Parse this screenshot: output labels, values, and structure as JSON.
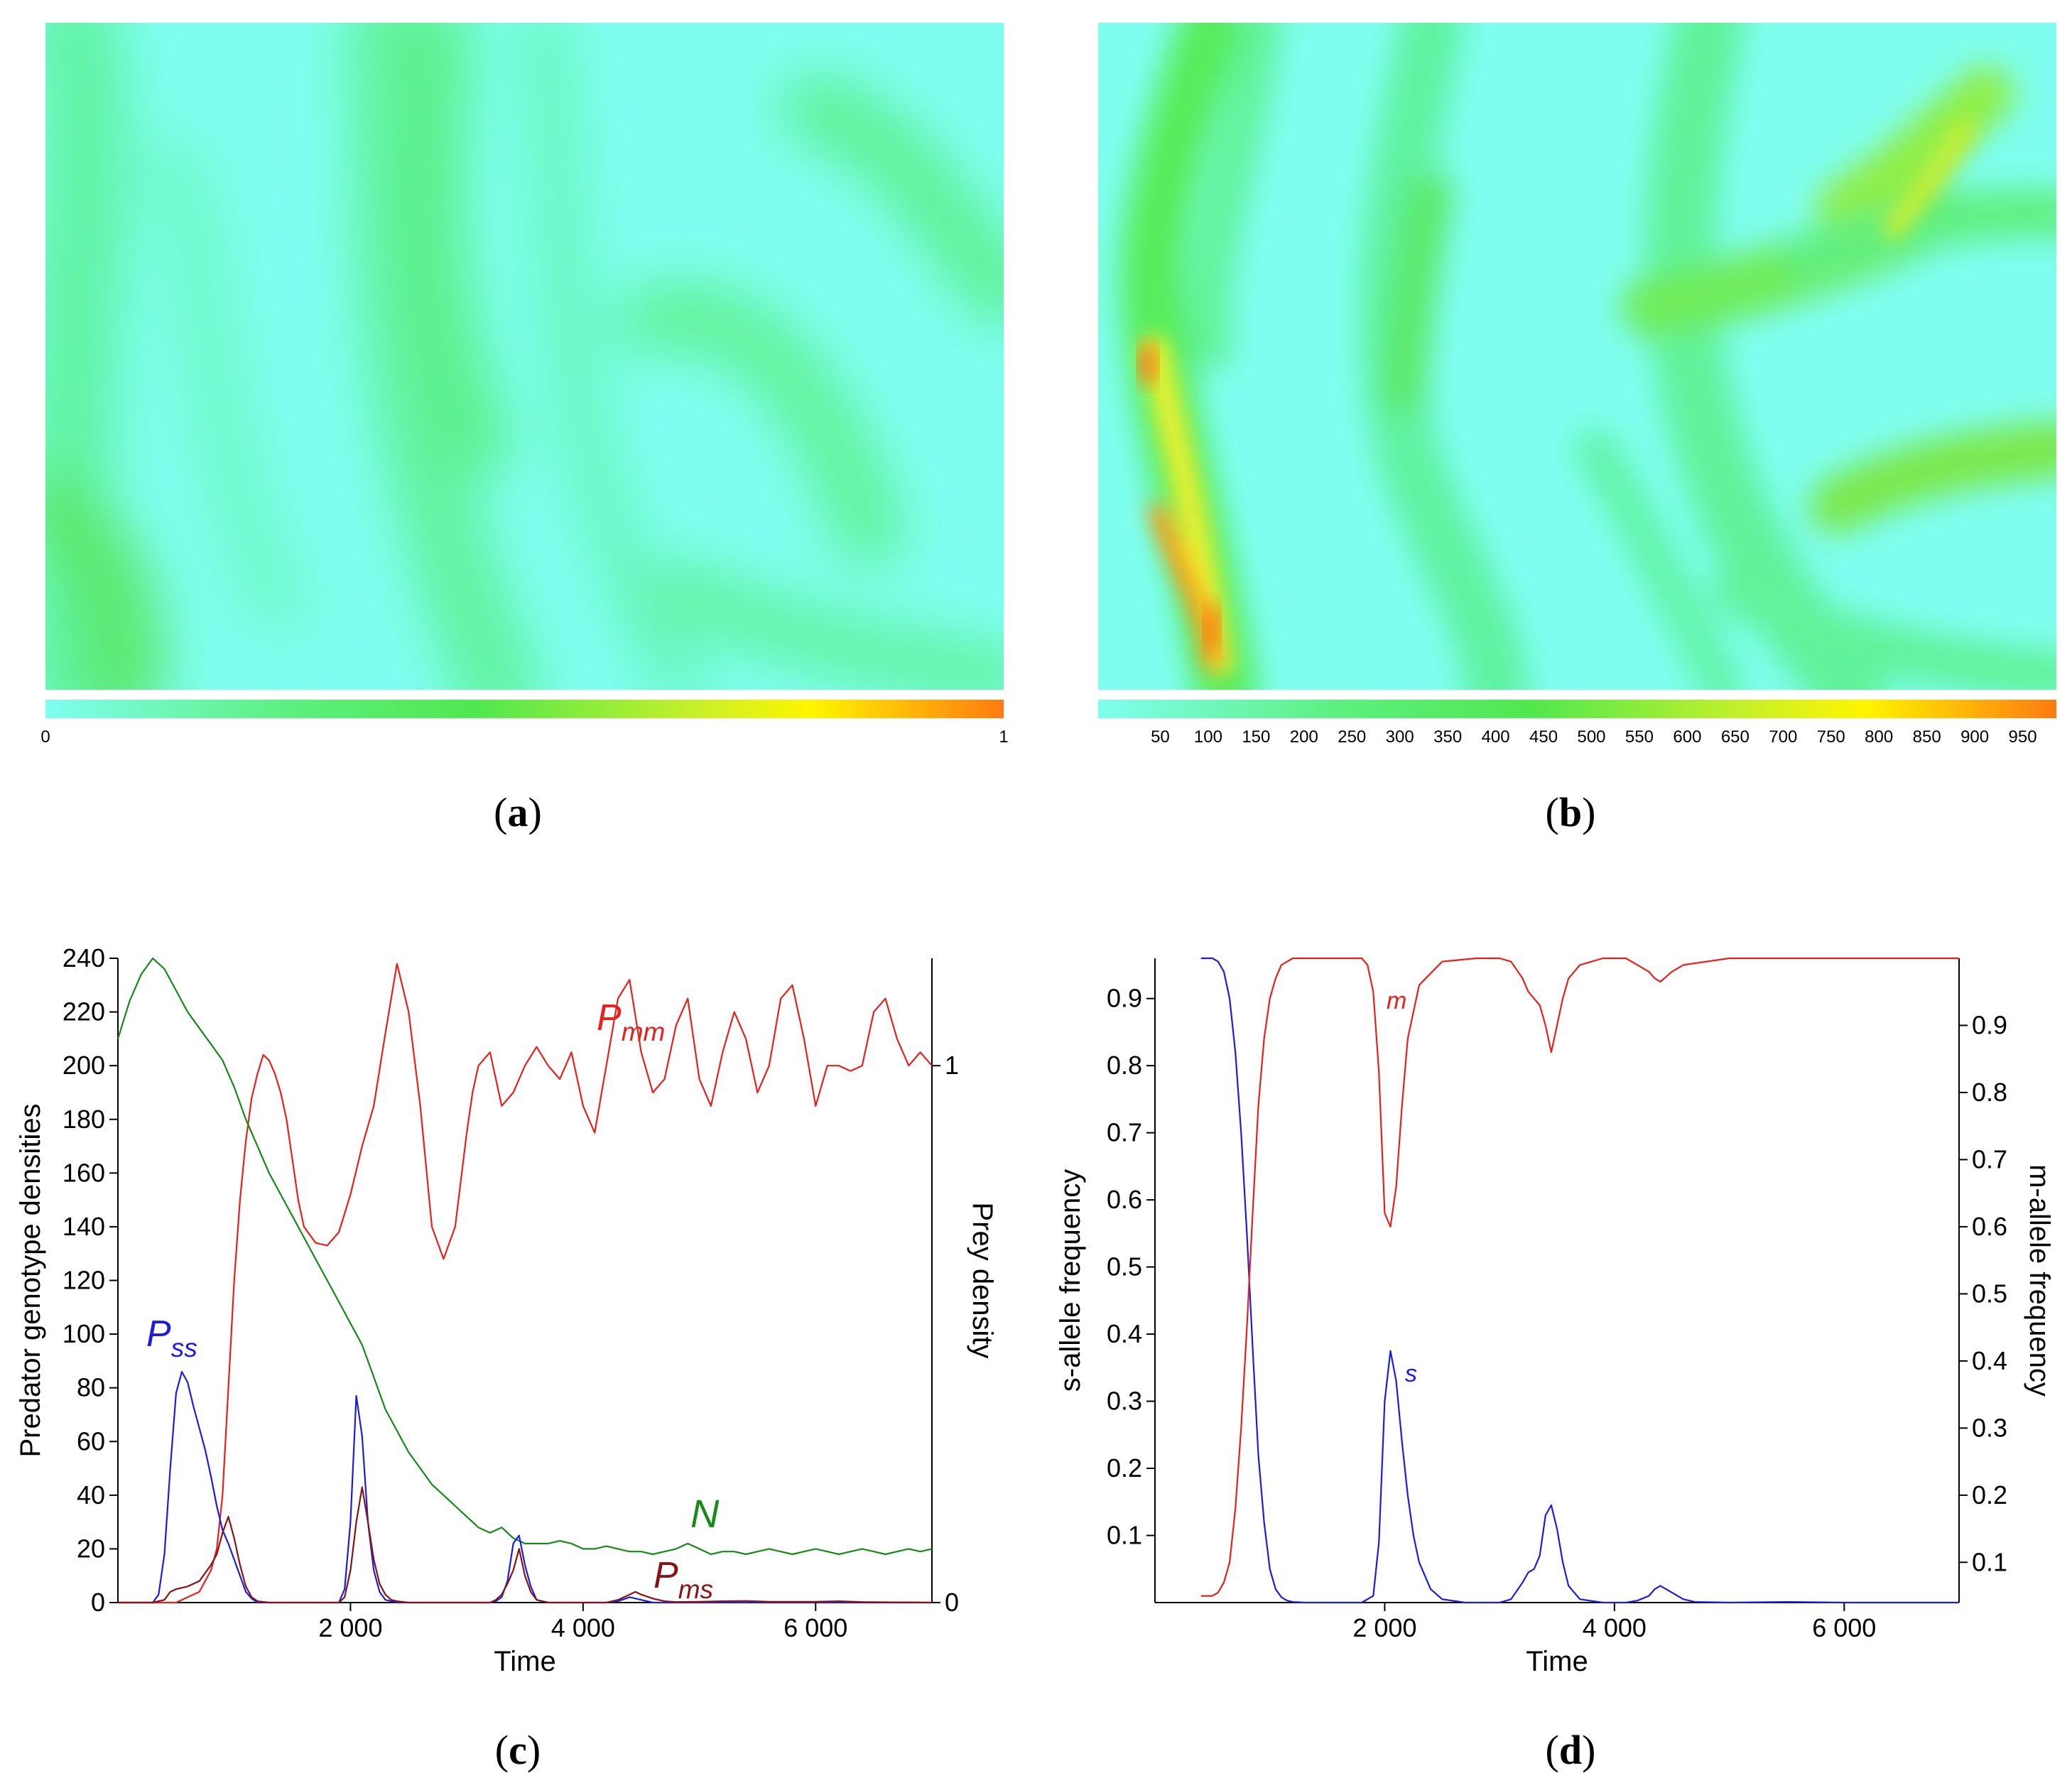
{
  "panels": {
    "a": {
      "label": "a"
    },
    "b": {
      "label": "b"
    },
    "c": {
      "label": "c"
    },
    "d": {
      "label": "d"
    }
  },
  "heatmap_a": {
    "colorbar_ticks": [
      "0",
      "1"
    ],
    "colors": [
      "#7ffef0",
      "#5cf080",
      "#4fe84f",
      "#c8f028",
      "#fff500",
      "#ff7a10"
    ]
  },
  "heatmap_b": {
    "colorbar_ticks": [
      "50",
      "100",
      "150",
      "200",
      "250",
      "300",
      "350",
      "400",
      "450",
      "500",
      "550",
      "600",
      "650",
      "700",
      "750",
      "800",
      "850",
      "900",
      "950"
    ],
    "colors": [
      "#7ffef0",
      "#5cf080",
      "#4fe84f",
      "#c8f028",
      "#fff500",
      "#ff7a10"
    ]
  },
  "chart_data": [
    {
      "type": "line",
      "panel": "c",
      "title": "",
      "xlabel": "Time",
      "ylabel": "Predator genotype densities",
      "y2label": "Prey density",
      "xlim": [
        0,
        7000
      ],
      "ylim": [
        0,
        240
      ],
      "y2lim": [
        0,
        1.2
      ],
      "xticks": [
        2000,
        4000,
        6000
      ],
      "xtick_labels": [
        "2 000",
        "4 000",
        "6 000"
      ],
      "yticks": [
        0,
        20,
        40,
        60,
        80,
        100,
        120,
        140,
        160,
        180,
        200,
        220,
        240
      ],
      "ytick_labels": [
        "0",
        "20",
        "40",
        "60",
        "80",
        "100",
        "120",
        "140",
        "160",
        "180",
        "200",
        "220",
        "240"
      ],
      "y2ticks": [
        0,
        1
      ],
      "y2tick_labels": [
        "0",
        "1"
      ],
      "series": [
        {
          "name": "P_mm",
          "label_main": "P",
          "label_sub": "mm",
          "color": "#e8201c",
          "axis": "left",
          "x": [
            0,
            100,
            200,
            300,
            400,
            500,
            600,
            700,
            800,
            850,
            900,
            950,
            1000,
            1050,
            1100,
            1150,
            1200,
            1250,
            1300,
            1350,
            1400,
            1450,
            1500,
            1550,
            1600,
            1700,
            1800,
            1900,
            2000,
            2100,
            2200,
            2300,
            2400,
            2500,
            2600,
            2700,
            2800,
            2900,
            3000,
            3050,
            3100,
            3200,
            3300,
            3400,
            3500,
            3600,
            3700,
            3800,
            3900,
            4000,
            4100,
            4200,
            4300,
            4400,
            4500,
            4600,
            4700,
            4800,
            4900,
            5000,
            5100,
            5200,
            5300,
            5400,
            5500,
            5600,
            5700,
            5800,
            5900,
            6000,
            6100,
            6200,
            6300,
            6400,
            6500,
            6600,
            6700,
            6800,
            6900,
            7000
          ],
          "y": [
            0,
            0,
            0,
            0,
            0,
            0,
            2,
            4,
            12,
            20,
            40,
            80,
            120,
            150,
            172,
            188,
            197,
            204,
            202,
            197,
            190,
            180,
            165,
            150,
            140,
            134,
            133,
            138,
            152,
            170,
            185,
            212,
            238,
            220,
            185,
            140,
            128,
            140,
            175,
            190,
            200,
            205,
            185,
            190,
            200,
            207,
            200,
            195,
            205,
            185,
            175,
            200,
            225,
            232,
            205,
            190,
            195,
            215,
            225,
            195,
            185,
            205,
            220,
            210,
            190,
            200,
            225,
            230,
            210,
            185,
            200,
            200,
            198,
            200,
            220,
            225,
            210,
            200,
            205,
            200
          ]
        },
        {
          "name": "N",
          "label_main": "N",
          "color": "#178a17",
          "axis": "right",
          "x": [
            0,
            100,
            200,
            300,
            400,
            500,
            600,
            700,
            800,
            900,
            1000,
            1100,
            1200,
            1300,
            1400,
            1500,
            1600,
            1700,
            1800,
            1900,
            2000,
            2100,
            2200,
            2300,
            2400,
            2500,
            2600,
            2700,
            2800,
            2900,
            3000,
            3100,
            3200,
            3300,
            3400,
            3500,
            3600,
            3700,
            3800,
            3900,
            4000,
            4100,
            4200,
            4300,
            4400,
            4500,
            4600,
            4700,
            4800,
            4900,
            5000,
            5100,
            5200,
            5300,
            5400,
            5500,
            5600,
            5700,
            5800,
            5900,
            6000,
            6100,
            6200,
            6300,
            6400,
            6500,
            6600,
            6700,
            6800,
            6900,
            7000
          ],
          "y": [
            1.05,
            1.12,
            1.17,
            1.2,
            1.18,
            1.14,
            1.1,
            1.07,
            1.04,
            1.01,
            0.96,
            0.9,
            0.85,
            0.8,
            0.76,
            0.72,
            0.68,
            0.64,
            0.6,
            0.56,
            0.52,
            0.48,
            0.42,
            0.36,
            0.32,
            0.28,
            0.25,
            0.22,
            0.2,
            0.18,
            0.16,
            0.14,
            0.13,
            0.14,
            0.12,
            0.11,
            0.11,
            0.11,
            0.115,
            0.11,
            0.1,
            0.1,
            0.105,
            0.1,
            0.095,
            0.095,
            0.09,
            0.095,
            0.1,
            0.11,
            0.1,
            0.09,
            0.095,
            0.095,
            0.09,
            0.095,
            0.1,
            0.095,
            0.09,
            0.095,
            0.1,
            0.095,
            0.09,
            0.095,
            0.1,
            0.095,
            0.09,
            0.095,
            0.1,
            0.095,
            0.1
          ]
        },
        {
          "name": "P_ss",
          "label_main": "P",
          "label_sub": "ss",
          "color": "#1c1ce0",
          "axis": "left",
          "x": [
            0,
            300,
            350,
            400,
            450,
            500,
            550,
            600,
            650,
            700,
            750,
            800,
            850,
            900,
            950,
            1000,
            1050,
            1100,
            1150,
            1200,
            1400,
            1800,
            1900,
            1950,
            2000,
            2050,
            2100,
            2150,
            2200,
            2250,
            2300,
            2400,
            2500,
            2700,
            3000,
            3100,
            3200,
            3250,
            3300,
            3350,
            3400,
            3450,
            3500,
            3550,
            3600,
            3700,
            3800,
            4000,
            4200,
            4300,
            4400,
            4500,
            4600,
            5000,
            7000
          ],
          "y": [
            0,
            0,
            3,
            18,
            50,
            78,
            86,
            82,
            73,
            65,
            57,
            47,
            36,
            27,
            22,
            16,
            10,
            4,
            1.5,
            0,
            0,
            0,
            0,
            5,
            30,
            77,
            62,
            30,
            12,
            4,
            1,
            0,
            0,
            0,
            0,
            0,
            0,
            0.5,
            2,
            8,
            22,
            25,
            14,
            6,
            1,
            0,
            0,
            0,
            0,
            0.5,
            2,
            1,
            0,
            0,
            0
          ]
        },
        {
          "name": "P_ms",
          "label_main": "P",
          "label_sub": "ms",
          "color": "#8b1212",
          "axis": "left",
          "x": [
            0,
            300,
            400,
            450,
            500,
            600,
            700,
            800,
            850,
            900,
            950,
            1000,
            1050,
            1100,
            1150,
            1200,
            1300,
            1400,
            1800,
            1900,
            1950,
            2000,
            2050,
            2100,
            2150,
            2200,
            2250,
            2300,
            2350,
            2400,
            2500,
            2800,
            3000,
            3100,
            3200,
            3250,
            3300,
            3350,
            3400,
            3450,
            3500,
            3550,
            3600,
            3700,
            3900,
            4100,
            4200,
            4300,
            4400,
            4450,
            4500,
            4600,
            4700,
            4800,
            5000,
            5200,
            5400,
            5600,
            6000,
            6200,
            6400,
            7000
          ],
          "y": [
            0,
            0,
            1,
            4,
            5,
            6,
            8,
            14,
            18,
            26,
            32,
            24,
            14,
            6,
            2,
            0.5,
            0,
            0,
            0,
            0,
            2,
            12,
            30,
            43,
            30,
            16,
            7,
            3,
            1,
            0.5,
            0,
            0,
            0,
            0,
            0,
            1,
            3,
            7,
            12,
            20,
            10,
            4,
            1,
            0,
            0,
            0,
            0,
            1,
            3,
            4,
            3,
            1.5,
            0.5,
            0.2,
            0.3,
            0.5,
            0.6,
            0.3,
            0.3,
            0.5,
            0.2,
            0
          ]
        }
      ]
    },
    {
      "type": "line",
      "panel": "d",
      "title": "",
      "xlabel": "Time",
      "ylabel": "s-allele frequency",
      "y2label": "m-allele frequency",
      "xlim": [
        0,
        7000
      ],
      "ylim": [
        0,
        0.96
      ],
      "y2lim": [
        0.04,
        1.0
      ],
      "xticks": [
        2000,
        4000,
        6000
      ],
      "xtick_labels": [
        "2 000",
        "4 000",
        "6 000"
      ],
      "yticks": [
        0.1,
        0.2,
        0.3,
        0.4,
        0.5,
        0.6,
        0.7,
        0.8,
        0.9
      ],
      "ytick_labels": [
        "0.1",
        "0.2",
        "0.3",
        "0.4",
        "0.5",
        "0.6",
        "0.7",
        "0.8",
        "0.9"
      ],
      "y2ticks": [
        0.1,
        0.2,
        0.3,
        0.4,
        0.5,
        0.6,
        0.7,
        0.8,
        0.9
      ],
      "y2tick_labels": [
        "0.1",
        "0.2",
        "0.3",
        "0.4",
        "0.5",
        "0.6",
        "0.7",
        "0.8",
        "0.9"
      ],
      "series": [
        {
          "name": "s",
          "label_main": "s",
          "color": "#1c1ce0",
          "axis": "left",
          "x": [
            400,
            500,
            550,
            600,
            650,
            700,
            750,
            800,
            850,
            900,
            950,
            1000,
            1050,
            1100,
            1150,
            1200,
            1300,
            1500,
            1800,
            1900,
            1950,
            2000,
            2050,
            2100,
            2150,
            2200,
            2250,
            2300,
            2400,
            2500,
            2700,
            3000,
            3100,
            3200,
            3250,
            3300,
            3350,
            3400,
            3450,
            3500,
            3550,
            3600,
            3700,
            3900,
            4100,
            4200,
            4300,
            4350,
            4400,
            4500,
            4600,
            4700,
            5000,
            5500,
            6000,
            7000
          ],
          "y": [
            0.96,
            0.96,
            0.955,
            0.94,
            0.9,
            0.82,
            0.7,
            0.55,
            0.38,
            0.22,
            0.12,
            0.05,
            0.02,
            0.008,
            0.003,
            0.001,
            0,
            0,
            0,
            0.01,
            0.09,
            0.3,
            0.375,
            0.33,
            0.24,
            0.16,
            0.1,
            0.06,
            0.02,
            0.005,
            0,
            0,
            0.005,
            0.03,
            0.045,
            0.05,
            0.07,
            0.13,
            0.145,
            0.11,
            0.06,
            0.025,
            0.005,
            0,
            0,
            0.003,
            0.01,
            0.02,
            0.025,
            0.015,
            0.005,
            0.001,
            0,
            0.001,
            0,
            0
          ]
        },
        {
          "name": "m",
          "label_main": "m",
          "color": "#e8201c",
          "axis": "right",
          "x": [
            400,
            500,
            550,
            600,
            650,
            700,
            750,
            800,
            850,
            900,
            950,
            1000,
            1050,
            1100,
            1150,
            1200,
            1300,
            1500,
            1800,
            1850,
            1900,
            1950,
            2000,
            2050,
            2100,
            2150,
            2200,
            2300,
            2500,
            2800,
            3000,
            3100,
            3200,
            3250,
            3300,
            3350,
            3400,
            3450,
            3500,
            3550,
            3600,
            3700,
            3900,
            4100,
            4200,
            4300,
            4350,
            4400,
            4500,
            4600,
            5000,
            6000,
            7000
          ],
          "y": [
            0.05,
            0.05,
            0.055,
            0.07,
            0.1,
            0.18,
            0.3,
            0.45,
            0.62,
            0.78,
            0.88,
            0.94,
            0.97,
            0.99,
            0.995,
            1.0,
            1.0,
            1.0,
            1.0,
            0.99,
            0.95,
            0.83,
            0.62,
            0.6,
            0.66,
            0.78,
            0.88,
            0.96,
            0.995,
            1.0,
            1.0,
            0.995,
            0.97,
            0.95,
            0.94,
            0.93,
            0.9,
            0.86,
            0.9,
            0.94,
            0.97,
            0.99,
            1.0,
            1.0,
            0.99,
            0.98,
            0.97,
            0.965,
            0.98,
            0.99,
            1.0,
            1.0,
            1.0
          ]
        }
      ]
    }
  ]
}
